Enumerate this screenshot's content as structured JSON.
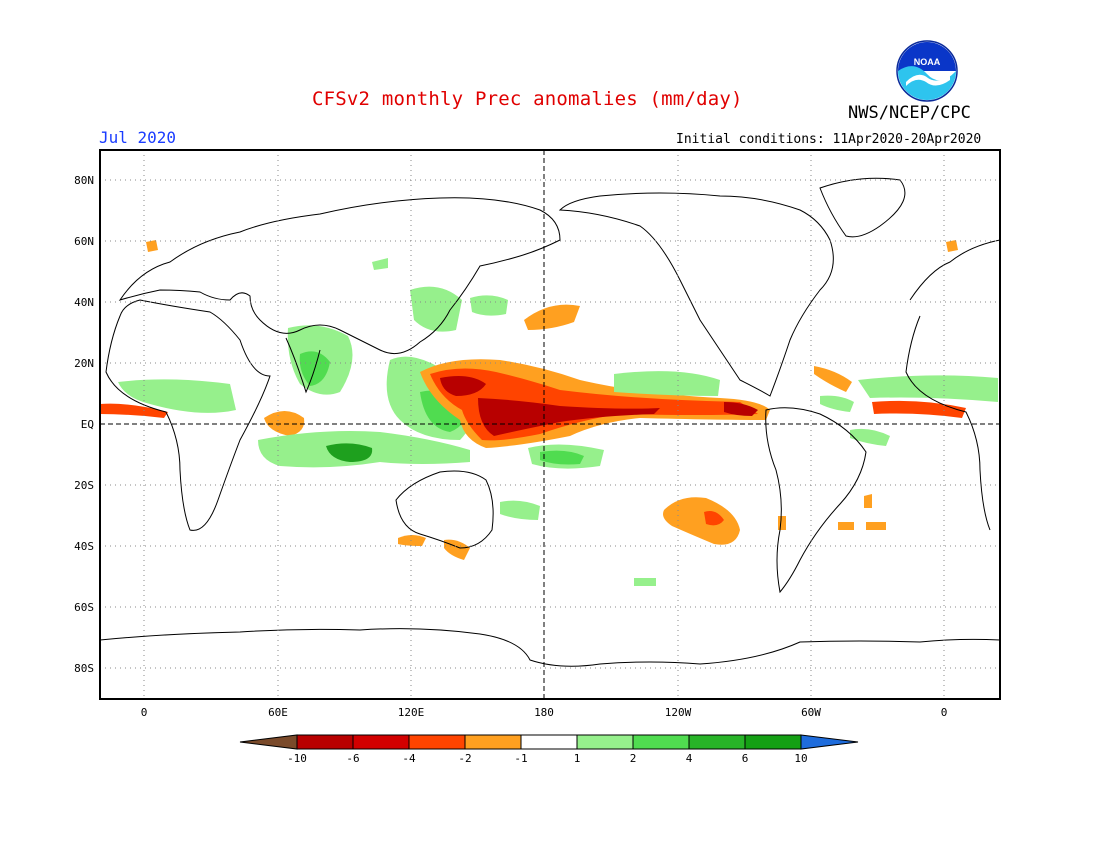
{
  "header": {
    "title": "CFSv2 monthly Prec anomalies (mm/day)",
    "agency": "NWS/NCEP/CPC",
    "logo_text": "NOAA",
    "month": "Jul 2020",
    "initial_conditions": "Initial conditions: 11Apr2020-20Apr2020"
  },
  "map": {
    "projection": "equirectangular",
    "lon_range": [
      -20,
      380
    ],
    "lat_range": [
      -90,
      90
    ],
    "grid": "dotted",
    "y_ticks": [
      "80N",
      "60N",
      "40N",
      "20N",
      "EQ",
      "20S",
      "40S",
      "60S",
      "80S"
    ],
    "x_ticks": [
      "0",
      "60E",
      "120E",
      "180",
      "120W",
      "60W",
      "0"
    ],
    "colors": {
      "strong_dry": "#b80000",
      "dry": "#ff4400",
      "mild_dry": "#ffa020",
      "mild_wet": "#96f08c",
      "wet": "#50dc50",
      "strong_wet": "#1ea01e"
    }
  },
  "legend": {
    "labels": [
      "-10",
      "-6",
      "-4",
      "-2",
      "-1",
      "1",
      "2",
      "4",
      "6",
      "10"
    ],
    "colors": [
      "#7a4a2a",
      "#b80000",
      "#d20000",
      "#ff4400",
      "#ffa020",
      "#ffffff",
      "#96f08c",
      "#50dc50",
      "#28b428",
      "#14a014",
      "#1e6cdc"
    ]
  }
}
